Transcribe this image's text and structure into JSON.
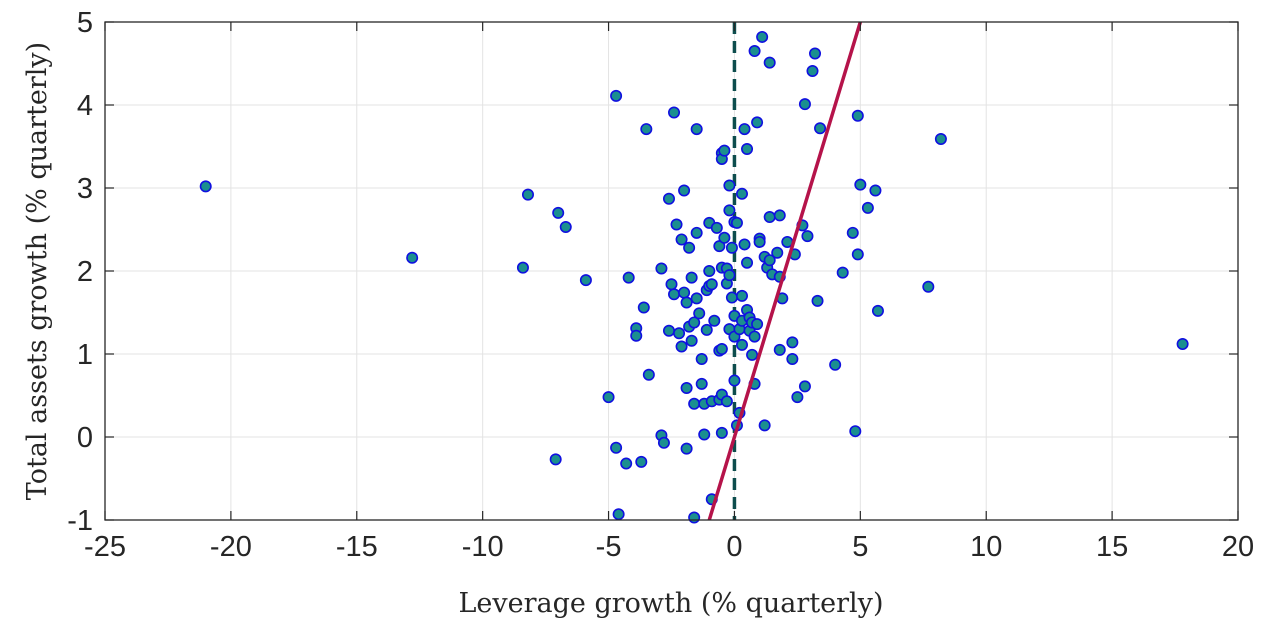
{
  "chart_data": {
    "type": "scatter",
    "title": "",
    "xlabel": "Leverage growth (% quarterly)",
    "ylabel": "Total assets growth (% quarterly)",
    "xlim": [
      -25,
      20
    ],
    "ylim": [
      -1,
      5
    ],
    "xticks": [
      -25,
      -20,
      -15,
      -10,
      -5,
      0,
      5,
      10,
      15,
      20
    ],
    "yticks": [
      -1,
      0,
      1,
      2,
      3,
      4,
      5
    ],
    "grid": true,
    "colors": {
      "marker_fill": "#1b8f8f",
      "marker_edge": "#1010e0",
      "fit_line": "#b5134a",
      "zero_line": "#0d4d4d"
    },
    "reference_line": {
      "style": "dashed",
      "x": 0
    },
    "fit_line": {
      "style": "solid",
      "points": [
        [
          -1.0,
          -1.0
        ],
        [
          5.0,
          5.0
        ]
      ]
    },
    "points": [
      [
        -21.0,
        3.02
      ],
      [
        -12.8,
        2.16
      ],
      [
        -8.4,
        2.04
      ],
      [
        -8.2,
        2.92
      ],
      [
        -7.0,
        2.7
      ],
      [
        -6.7,
        2.53
      ],
      [
        -5.9,
        1.89
      ],
      [
        -7.1,
        -0.27
      ],
      [
        -5.0,
        0.48
      ],
      [
        -4.7,
        4.11
      ],
      [
        -4.7,
        -0.13
      ],
      [
        -4.6,
        -0.93
      ],
      [
        -4.3,
        -0.32
      ],
      [
        -4.2,
        1.92
      ],
      [
        -3.9,
        1.31
      ],
      [
        -3.9,
        1.22
      ],
      [
        -3.7,
        -0.3
      ],
      [
        -3.6,
        1.56
      ],
      [
        -3.5,
        3.71
      ],
      [
        -3.4,
        0.75
      ],
      [
        -2.9,
        2.03
      ],
      [
        -2.9,
        0.02
      ],
      [
        -2.8,
        -0.07
      ],
      [
        -2.6,
        1.28
      ],
      [
        -2.6,
        2.87
      ],
      [
        -2.5,
        1.84
      ],
      [
        -2.4,
        3.91
      ],
      [
        -2.4,
        1.72
      ],
      [
        -2.3,
        2.56
      ],
      [
        -2.2,
        1.25
      ],
      [
        -2.1,
        1.09
      ],
      [
        -2.1,
        2.38
      ],
      [
        -2.0,
        2.97
      ],
      [
        -2.0,
        1.74
      ],
      [
        -1.9,
        1.62
      ],
      [
        -1.9,
        -0.14
      ],
      [
        -1.9,
        0.59
      ],
      [
        -1.8,
        1.33
      ],
      [
        -1.8,
        2.28
      ],
      [
        -1.7,
        1.92
      ],
      [
        -1.7,
        1.16
      ],
      [
        -1.6,
        1.38
      ],
      [
        -1.6,
        0.4
      ],
      [
        -1.6,
        -0.97
      ],
      [
        -1.5,
        3.71
      ],
      [
        -1.5,
        2.46
      ],
      [
        -1.5,
        1.67
      ],
      [
        -1.4,
        1.49
      ],
      [
        -1.3,
        0.64
      ],
      [
        -1.3,
        0.94
      ],
      [
        -1.2,
        0.03
      ],
      [
        -1.2,
        0.4
      ],
      [
        -1.1,
        1.77
      ],
      [
        -1.1,
        1.29
      ],
      [
        -1.0,
        2.0
      ],
      [
        -1.0,
        1.82
      ],
      [
        -1.0,
        2.58
      ],
      [
        -0.9,
        1.84
      ],
      [
        -0.9,
        0.43
      ],
      [
        -0.9,
        -0.75
      ],
      [
        -0.8,
        1.4
      ],
      [
        -0.7,
        2.52
      ],
      [
        -0.6,
        2.3
      ],
      [
        -0.6,
        1.04
      ],
      [
        -0.6,
        0.45
      ],
      [
        -0.5,
        3.42
      ],
      [
        -0.5,
        3.35
      ],
      [
        -0.5,
        2.04
      ],
      [
        -0.5,
        1.06
      ],
      [
        -0.5,
        0.51
      ],
      [
        -0.5,
        0.05
      ],
      [
        -0.4,
        3.45
      ],
      [
        -0.4,
        2.4
      ],
      [
        -0.3,
        2.03
      ],
      [
        -0.3,
        1.85
      ],
      [
        -0.3,
        0.43
      ],
      [
        -0.2,
        3.03
      ],
      [
        -0.2,
        2.73
      ],
      [
        -0.2,
        1.3
      ],
      [
        -0.2,
        1.95
      ],
      [
        -0.1,
        1.68
      ],
      [
        -0.1,
        2.28
      ],
      [
        0.0,
        1.46
      ],
      [
        0.0,
        1.21
      ],
      [
        0.0,
        0.68
      ],
      [
        0.0,
        2.59
      ],
      [
        0.1,
        0.14
      ],
      [
        0.1,
        2.58
      ],
      [
        0.2,
        0.29
      ],
      [
        0.2,
        1.3
      ],
      [
        0.3,
        1.11
      ],
      [
        0.3,
        1.4
      ],
      [
        0.3,
        2.93
      ],
      [
        0.3,
        1.7
      ],
      [
        0.4,
        2.32
      ],
      [
        0.4,
        3.71
      ],
      [
        0.5,
        1.53
      ],
      [
        0.5,
        3.47
      ],
      [
        0.5,
        2.1
      ],
      [
        0.6,
        1.28
      ],
      [
        0.6,
        1.44
      ],
      [
        0.7,
        0.99
      ],
      [
        0.7,
        1.38
      ],
      [
        0.8,
        4.65
      ],
      [
        0.8,
        0.64
      ],
      [
        0.8,
        1.21
      ],
      [
        0.9,
        3.79
      ],
      [
        0.9,
        1.36
      ],
      [
        1.0,
        2.39
      ],
      [
        1.0,
        2.35
      ],
      [
        1.1,
        4.82
      ],
      [
        1.2,
        2.17
      ],
      [
        1.2,
        0.14
      ],
      [
        1.3,
        2.04
      ],
      [
        1.4,
        2.13
      ],
      [
        1.4,
        4.51
      ],
      [
        1.4,
        2.65
      ],
      [
        1.5,
        1.96
      ],
      [
        1.7,
        2.22
      ],
      [
        1.8,
        1.05
      ],
      [
        1.8,
        1.93
      ],
      [
        1.8,
        2.67
      ],
      [
        1.9,
        1.67
      ],
      [
        2.1,
        2.35
      ],
      [
        2.3,
        0.94
      ],
      [
        2.4,
        2.2
      ],
      [
        2.3,
        1.14
      ],
      [
        2.5,
        0.48
      ],
      [
        2.7,
        2.55
      ],
      [
        2.8,
        0.61
      ],
      [
        2.8,
        4.01
      ],
      [
        2.9,
        2.42
      ],
      [
        3.1,
        4.41
      ],
      [
        3.2,
        4.62
      ],
      [
        3.3,
        1.64
      ],
      [
        3.4,
        3.72
      ],
      [
        4.0,
        0.87
      ],
      [
        4.3,
        1.98
      ],
      [
        4.7,
        2.46
      ],
      [
        4.8,
        0.07
      ],
      [
        4.9,
        2.2
      ],
      [
        4.9,
        3.87
      ],
      [
        5.0,
        3.04
      ],
      [
        5.3,
        2.76
      ],
      [
        5.6,
        2.97
      ],
      [
        5.7,
        1.52
      ],
      [
        7.7,
        1.81
      ],
      [
        8.2,
        3.59
      ],
      [
        17.8,
        1.12
      ]
    ]
  }
}
